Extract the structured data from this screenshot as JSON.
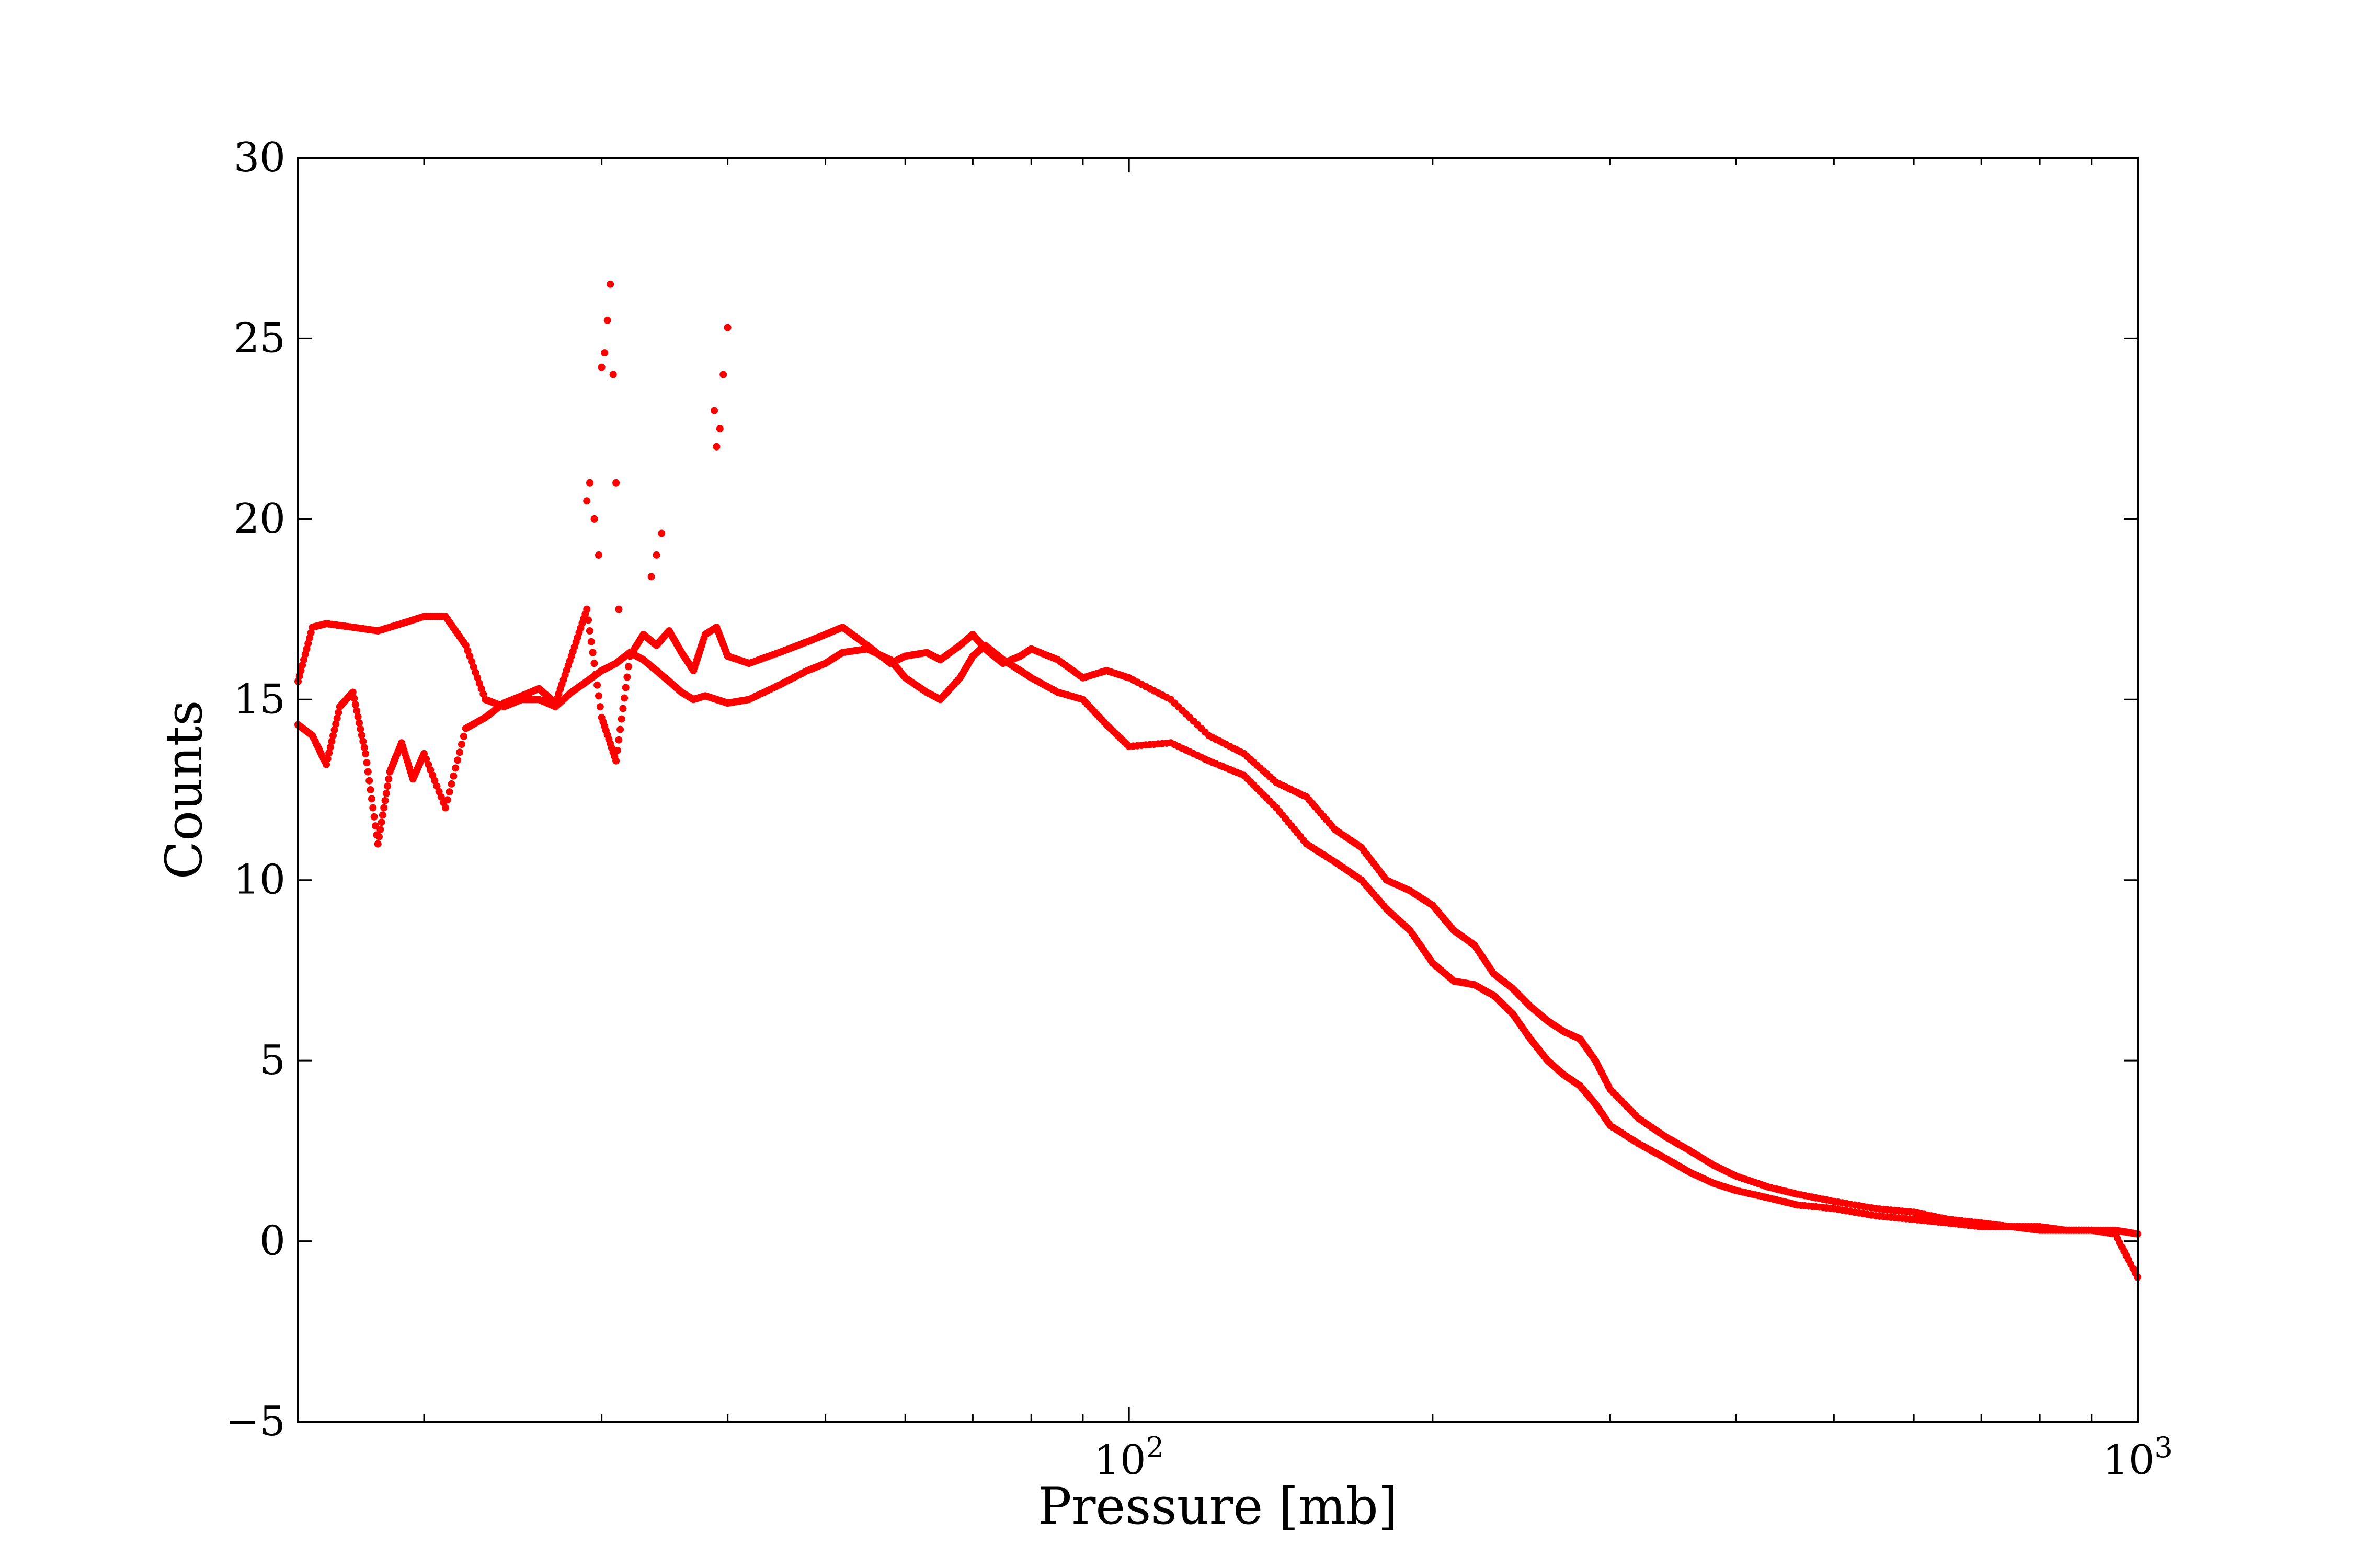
{
  "chart_data": {
    "type": "scatter",
    "title": "",
    "xlabel": "Pressure [mb]",
    "ylabel": "Counts",
    "xscale": "log",
    "xlim": [
      15,
      1000
    ],
    "ylim": [
      -5,
      30
    ],
    "grid": false,
    "legend": "none",
    "marker_color": "#ff0000",
    "x_ticks": [
      {
        "value": 100,
        "base": "10",
        "exp": "2"
      },
      {
        "value": 1000,
        "base": "10",
        "exp": "3"
      }
    ],
    "y_ticks": [
      "−5",
      "0",
      "5",
      "10",
      "15",
      "20",
      "25",
      "30"
    ],
    "series": [
      {
        "x": [
          15,
          15.5,
          16,
          17,
          18,
          19,
          20,
          21,
          22,
          23,
          24,
          25,
          26,
          27,
          28,
          29,
          30,
          31,
          32,
          33,
          34,
          35,
          36,
          37,
          38,
          39,
          40,
          42,
          45,
          48,
          50,
          52,
          55,
          58,
          60,
          63,
          65,
          68,
          70,
          72,
          75,
          78,
          80,
          85,
          90,
          95,
          100,
          110,
          120,
          130,
          140,
          150,
          160,
          170,
          180,
          190,
          200,
          210,
          220,
          230,
          240,
          250,
          260,
          270,
          280,
          290,
          300,
          320,
          340,
          360,
          380,
          400,
          430,
          460,
          500,
          550,
          600,
          650,
          700,
          750,
          800,
          850,
          900,
          950,
          1000
        ],
        "y": [
          15.5,
          17.0,
          17.1,
          17.0,
          16.9,
          17.1,
          17.3,
          17.3,
          16.5,
          15.0,
          14.8,
          15.0,
          15.0,
          14.8,
          15.2,
          15.5,
          15.8,
          16.0,
          16.3,
          16.1,
          15.8,
          15.5,
          15.2,
          15.0,
          15.1,
          15.0,
          14.9,
          15.0,
          15.4,
          15.8,
          16.0,
          16.3,
          16.4,
          16.1,
          15.6,
          15.2,
          15.0,
          15.6,
          16.2,
          16.5,
          16.1,
          15.8,
          15.6,
          15.2,
          15.0,
          14.3,
          13.7,
          13.8,
          13.3,
          12.9,
          12.0,
          11.0,
          10.5,
          10.0,
          9.2,
          8.6,
          7.7,
          7.2,
          7.1,
          6.8,
          6.3,
          5.6,
          5.0,
          4.6,
          4.3,
          3.8,
          3.2,
          2.7,
          2.3,
          1.9,
          1.6,
          1.4,
          1.2,
          1.0,
          0.9,
          0.7,
          0.6,
          0.5,
          0.4,
          0.4,
          0.3,
          0.3,
          0.3,
          0.2,
          -1.0
        ]
      },
      {
        "x": [
          15,
          15.5,
          16,
          16.5,
          17,
          17.5,
          18,
          18.5,
          19,
          19.5,
          20,
          21,
          22,
          23,
          24,
          25,
          26,
          27,
          28,
          29,
          30,
          31,
          32,
          33,
          34,
          35,
          36,
          37,
          38,
          39,
          40,
          42,
          45,
          48,
          50,
          52,
          55,
          58,
          60,
          63,
          65,
          68,
          70,
          72,
          75,
          78,
          80,
          85,
          90,
          95,
          100,
          110,
          120,
          130,
          140,
          150,
          160,
          170,
          180,
          190,
          200,
          210,
          220,
          230,
          240,
          250,
          260,
          270,
          280,
          290,
          300,
          320,
          340,
          360,
          380,
          400,
          430,
          460,
          500,
          550,
          600,
          650,
          700,
          750,
          800,
          850,
          900,
          950,
          1000
        ],
        "y": [
          14.3,
          14.0,
          13.2,
          14.8,
          15.2,
          13.5,
          11.0,
          13.0,
          13.8,
          12.8,
          13.5,
          12.0,
          14.2,
          14.5,
          14.9,
          15.1,
          15.3,
          14.9,
          16.2,
          17.5,
          14.5,
          13.3,
          16.2,
          16.8,
          16.5,
          16.9,
          16.3,
          15.8,
          16.8,
          17.0,
          16.2,
          16.0,
          16.3,
          16.6,
          16.8,
          17.0,
          16.5,
          16.0,
          16.2,
          16.3,
          16.1,
          16.5,
          16.8,
          16.4,
          16.0,
          16.2,
          16.4,
          16.1,
          15.6,
          15.8,
          15.6,
          15.0,
          14.0,
          13.5,
          12.7,
          12.3,
          11.4,
          10.9,
          10.0,
          9.7,
          9.3,
          8.6,
          8.2,
          7.4,
          7.0,
          6.5,
          6.1,
          5.8,
          5.6,
          5.0,
          4.2,
          3.4,
          2.9,
          2.5,
          2.1,
          1.8,
          1.5,
          1.3,
          1.1,
          0.9,
          0.8,
          0.6,
          0.5,
          0.4,
          0.4,
          0.3,
          0.3,
          0.3,
          0.2
        ]
      },
      {
        "x": [
          29,
          29.2,
          29.5,
          29.8,
          30,
          30.2,
          30.4,
          30.6,
          30.8,
          31,
          31.2,
          33.6,
          34,
          34.4,
          38.8,
          39,
          39.3,
          39.6,
          40
        ],
        "y": [
          20.5,
          21.0,
          20.0,
          19.0,
          24.2,
          24.6,
          25.5,
          26.5,
          24.0,
          21.0,
          17.5,
          18.4,
          19.0,
          19.6,
          23.0,
          22.0,
          22.5,
          24.0,
          25.3
        ]
      }
    ]
  }
}
